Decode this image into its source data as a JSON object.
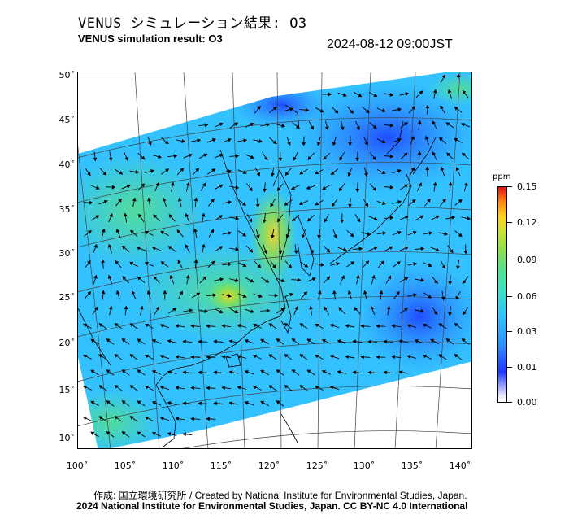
{
  "header": {
    "title_jp": "VENUS シミュレーション結果: O3",
    "title_en": "VENUS simulation result: O3",
    "timestamp": "2024-08-12 09:00JST"
  },
  "map": {
    "lat_ticks": [
      "50˚",
      "45˚",
      "40˚",
      "35˚",
      "30˚",
      "25˚",
      "20˚",
      "15˚",
      "10˚"
    ],
    "lon_ticks": [
      "100˚",
      "105˚",
      "110˚",
      "115˚",
      "120˚",
      "125˚",
      "130˚",
      "135˚",
      "140˚"
    ]
  },
  "colorbar": {
    "unit": "ppm",
    "labels": [
      "0.15",
      "0.12",
      "0.09",
      "0.06",
      "0.03",
      "0.01",
      "0.00"
    ],
    "colors": {
      "high": "#e01212",
      "mid": "#57e08a",
      "low": "#1c38ff",
      "zero": "#ffffff"
    }
  },
  "footer": {
    "credit": "作成: 国立環境研究所 / Created by National Institute for Environmental Studies, Japan.",
    "license": "2024 National Institute for Environmental Studies, Japan. CC BY-NC 4.0 International"
  }
}
